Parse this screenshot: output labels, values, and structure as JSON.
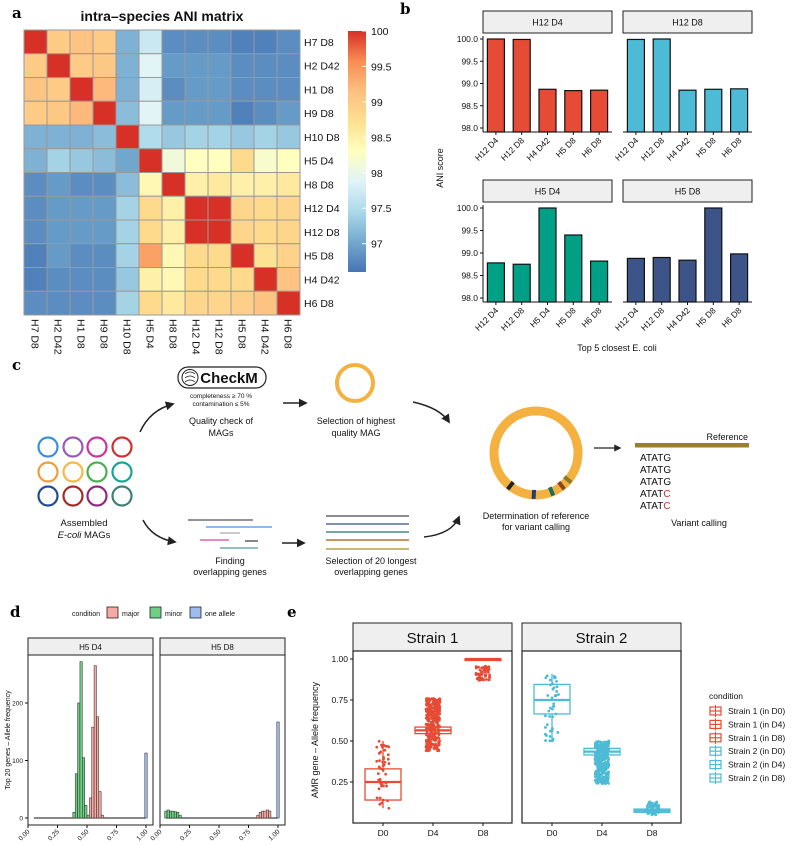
{
  "panel_labels": {
    "a": "a",
    "b": "b",
    "c": "c",
    "d": "d",
    "e": "e"
  },
  "chart_data": [
    {
      "type": "heatmap",
      "title": "intra–species ANI matrix",
      "rows": [
        "H7 D8",
        "H2 D42",
        "H1 D8",
        "H9 D8",
        "H10 D8",
        "H5 D4",
        "H8 D8",
        "H12 D4",
        "H12 D8",
        "H5 D8",
        "H4 D42",
        "H6 D8"
      ],
      "cols": [
        "H7 D8",
        "H2 D42",
        "H1 D8",
        "H9 D8",
        "H10 D8",
        "H5 D4",
        "H8 D8",
        "H12 D4",
        "H12 D8",
        "H5 D8",
        "H4 D42",
        "H6 D8"
      ],
      "values": [
        [
          100,
          99.0,
          99.1,
          99.0,
          97.1,
          97.7,
          96.8,
          96.8,
          96.8,
          96.7,
          96.7,
          96.8
        ],
        [
          99.0,
          100,
          99.0,
          99.05,
          97.1,
          97.9,
          96.9,
          96.9,
          96.9,
          96.8,
          96.8,
          96.8
        ],
        [
          99.1,
          99.0,
          100,
          99.2,
          97.1,
          97.8,
          96.8,
          96.9,
          96.9,
          96.8,
          96.8,
          96.8
        ],
        [
          99.0,
          99.05,
          99.2,
          100,
          97.2,
          97.9,
          96.9,
          96.9,
          96.9,
          96.7,
          96.8,
          96.9
        ],
        [
          97.1,
          97.1,
          97.1,
          97.2,
          100,
          97.5,
          97.3,
          97.4,
          97.4,
          97.3,
          97.4,
          97.3
        ],
        [
          97.1,
          97.4,
          97.3,
          97.2,
          97.0,
          100,
          98.1,
          98.3,
          98.3,
          98.8,
          98.2,
          98.3
        ],
        [
          96.8,
          96.9,
          96.8,
          96.8,
          97.2,
          98.4,
          100,
          98.5,
          98.6,
          98.5,
          98.5,
          98.6
        ],
        [
          96.8,
          96.9,
          96.9,
          96.9,
          97.4,
          98.8,
          98.5,
          100,
          100,
          98.85,
          98.8,
          98.85
        ],
        [
          96.8,
          96.9,
          96.9,
          96.9,
          97.4,
          98.8,
          98.5,
          100,
          100,
          98.85,
          98.8,
          98.85
        ],
        [
          96.7,
          96.9,
          96.8,
          96.8,
          97.4,
          99.4,
          98.4,
          98.8,
          98.8,
          100,
          98.7,
          98.9
        ],
        [
          96.7,
          96.8,
          96.8,
          96.8,
          97.3,
          98.5,
          98.4,
          98.8,
          98.8,
          98.8,
          100,
          99.1
        ],
        [
          96.8,
          96.8,
          96.8,
          96.8,
          97.4,
          98.8,
          98.6,
          98.85,
          98.85,
          98.95,
          99.1,
          100
        ]
      ],
      "range": [
        96.6,
        100
      ],
      "colorbar_ticks": [
        "100",
        "99.5",
        "99",
        "98.5",
        "98",
        "97.5",
        "97"
      ],
      "colorscale": [
        "#4575b4",
        "#74a9cf",
        "#abd9e9",
        "#e0f3f8",
        "#ffffbf",
        "#fee090",
        "#fdbf80",
        "#f88d52",
        "#d73027"
      ]
    },
    {
      "type": "bar",
      "ylabel": "ANI score",
      "xlabel": "Top 5 closest E. coli",
      "ylim": [
        98,
        100
      ],
      "yticks": [
        "100.0",
        "99.5",
        "99.0",
        "98.5",
        "98.0"
      ],
      "facets": [
        {
          "title": "H12 D4",
          "color": "#e64b35",
          "categories": [
            "H12 D4",
            "H12 D8",
            "H4 D42",
            "H5 D8",
            "H6 D8"
          ],
          "values": [
            100,
            99.99,
            98.87,
            98.84,
            98.85
          ]
        },
        {
          "title": "H12 D8",
          "color": "#4dbbd5",
          "categories": [
            "H12 D4",
            "H12 D8",
            "H4 D42",
            "H5 D8",
            "H6 D8"
          ],
          "values": [
            99.99,
            100,
            98.85,
            98.87,
            98.88
          ]
        },
        {
          "title": "H5 D4",
          "color": "#00a087",
          "categories": [
            "H12 D4",
            "H12 D8",
            "H5 D4",
            "H5 D8",
            "H6 D8"
          ],
          "values": [
            98.78,
            98.75,
            100,
            99.4,
            98.82
          ]
        },
        {
          "title": "H5 D8",
          "color": "#3c5488",
          "categories": [
            "H12 D4",
            "H12 D8",
            "H4 D42",
            "H5 D8",
            "H6 D8"
          ],
          "values": [
            98.88,
            98.9,
            98.84,
            100,
            98.98
          ]
        }
      ]
    },
    {
      "type": "bar",
      "subtype": "histogram",
      "legend_title": "condition",
      "legend_position": "top",
      "series": [
        {
          "name": "major",
          "color": "#f4a9a5"
        },
        {
          "name": "minor",
          "color": "#6fcf85"
        },
        {
          "name": "one allele",
          "color": "#9dbcf0"
        }
      ],
      "ylabel": "Top 20 genes – Allele frequency",
      "xticks": [
        "0.00",
        "0.25",
        "0.50",
        "0.75",
        "1.00"
      ],
      "yticks": [
        "0",
        "100",
        "200"
      ],
      "bin_width": 0.02,
      "facets": [
        {
          "title": "H5 D4",
          "bins": {
            "minor": [
              [
                0.39,
                10
              ],
              [
                0.41,
                77
              ],
              [
                0.43,
                200
              ],
              [
                0.45,
                272
              ],
              [
                0.47,
                105
              ],
              [
                0.49,
                22
              ],
              [
                0.51,
                5
              ]
            ],
            "major": [
              [
                0.53,
                35
              ],
              [
                0.55,
                158
              ],
              [
                0.57,
                265
              ],
              [
                0.59,
                176
              ],
              [
                0.61,
                46
              ],
              [
                0.63,
                5
              ]
            ],
            "one allele": [
              [
                1.0,
                113
              ]
            ]
          }
        },
        {
          "title": "H5 D8",
          "bins": {
            "minor": [
              [
                0.05,
                12
              ],
              [
                0.07,
                14
              ],
              [
                0.09,
                12
              ],
              [
                0.11,
                12
              ],
              [
                0.13,
                11
              ],
              [
                0.15,
                10
              ],
              [
                0.17,
                5
              ]
            ],
            "major": [
              [
                0.83,
                5
              ],
              [
                0.85,
                10
              ],
              [
                0.87,
                12
              ],
              [
                0.89,
                12
              ],
              [
                0.91,
                14
              ],
              [
                0.93,
                12
              ]
            ],
            "one allele": [
              [
                1.0,
                167
              ]
            ]
          }
        }
      ]
    },
    {
      "type": "box",
      "ylabel": "AMR gene – Allele frequency",
      "yticks": [
        "1.00",
        "0.75",
        "0.50",
        "0.25"
      ],
      "legend": {
        "title": "condition",
        "position": "right",
        "items": [
          {
            "label": "Strain 1 (in D0)",
            "color": "#e64b35"
          },
          {
            "label": "Strain 1 (in D4)",
            "color": "#e64b35"
          },
          {
            "label": "Strain 1 (in D8)",
            "color": "#e64b35"
          },
          {
            "label": "Strain 2 (in D0)",
            "color": "#4dbbd5"
          },
          {
            "label": "Strain 2 (in D4)",
            "color": "#4dbbd5"
          },
          {
            "label": "Strain 2 (in D8)",
            "color": "#4dbbd5"
          }
        ]
      },
      "facets": [
        {
          "title": "Strain 1",
          "color": "#e64b35",
          "groups": [
            {
              "x": "D0",
              "lower": 0.09,
              "q1": 0.14,
              "median": 0.25,
              "q3": 0.33,
              "upper": 0.5,
              "points": [
                0.09,
                0.5
              ],
              "n": 45
            },
            {
              "x": "D4",
              "lower": 0.5,
              "q1": 0.545,
              "median": 0.565,
              "q3": 0.585,
              "upper": 0.64,
              "points": [
                0.44,
                0.76
              ],
              "n": 300
            },
            {
              "x": "D8",
              "lower": 1.0,
              "q1": 1.0,
              "median": 1.0,
              "q3": 1.0,
              "upper": 1.0,
              "points": [
                0.87,
                0.96
              ],
              "n": 60
            }
          ]
        },
        {
          "title": "Strain 2",
          "color": "#4dbbd5",
          "groups": [
            {
              "x": "D0",
              "lower": 0.5,
              "q1": 0.665,
              "median": 0.75,
              "q3": 0.845,
              "upper": 0.91,
              "points": [
                0.5,
                0.91
              ],
              "n": 45
            },
            {
              "x": "D4",
              "lower": 0.36,
              "q1": 0.415,
              "median": 0.435,
              "q3": 0.455,
              "upper": 0.5,
              "points": [
                0.24,
                0.5
              ],
              "n": 300
            },
            {
              "x": "D8",
              "lower": 0.05,
              "q1": 0.065,
              "median": 0.075,
              "q3": 0.085,
              "upper": 0.1,
              "points": [
                0.05,
                0.13
              ],
              "n": 60
            }
          ]
        }
      ]
    }
  ],
  "diagram": {
    "checkm_logo": "CheckM",
    "completeness": "completeness ≥ 70 %",
    "contamination": "contamination ≤ 5%",
    "quality_check_1": "Quality check of",
    "quality_check_2": "MAGs",
    "selection_highest_1": "Selection of highest",
    "selection_highest_2": "quality MAG",
    "assembled_1": "Assembled",
    "assembled_2_italic": "E-coli",
    "assembled_2_rest": " MAGs",
    "finding_1": "Finding",
    "finding_2": "overlapping genes",
    "selection_20_1": "Selection of 20 longest",
    "selection_20_2": "overlapping genes",
    "determination_1": "Determination of reference",
    "determination_2": "for variant calling",
    "reference": "Reference",
    "sequences": [
      {
        "prefix": "ATAT",
        "last": "G",
        "variant": false
      },
      {
        "prefix": "ATAT",
        "last": "G",
        "variant": false
      },
      {
        "prefix": "ATAT",
        "last": "G",
        "variant": false
      },
      {
        "prefix": "ATAT",
        "last": "C",
        "variant": true
      },
      {
        "prefix": "ATAT",
        "last": "C",
        "variant": true
      }
    ],
    "variant_calling": "Variant calling",
    "ring_color": "#f4b13f",
    "mag_colors": [
      "#3a8fd6",
      "#9b59b6",
      "#c9359e",
      "#d03030",
      "#f39c3a",
      "#f5b942",
      "#4caf50",
      "#16a596",
      "#1f4e8f",
      "#a52a2a",
      "#8e2a80",
      "#3f8078"
    ]
  }
}
